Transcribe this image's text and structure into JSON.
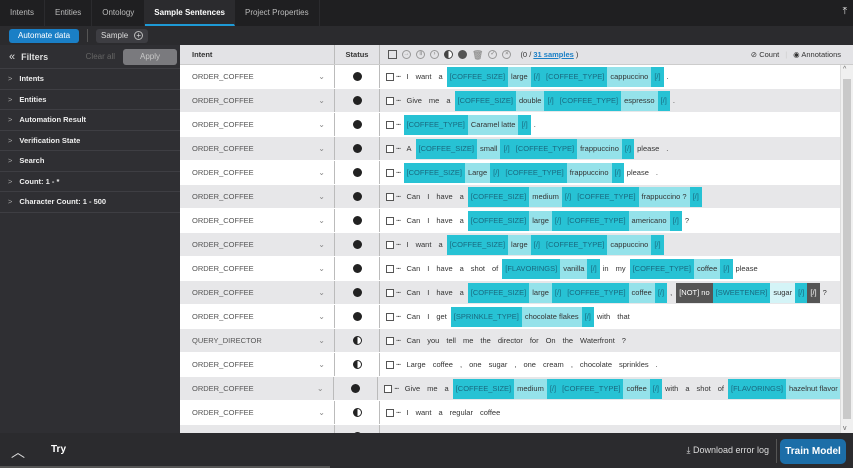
{
  "tabs": [
    {
      "label": "Intents"
    },
    {
      "label": "Entities"
    },
    {
      "label": "Ontology"
    },
    {
      "label": "Sample Sentences",
      "active": true
    },
    {
      "label": "Project Properties"
    }
  ],
  "toolbar": {
    "automate_label": "Automate data",
    "sample_label": "Sample"
  },
  "filters": {
    "title": "Filters",
    "clear_label": "Clear all",
    "apply_label": "Apply",
    "items": [
      {
        "label": "Intents"
      },
      {
        "label": "Entities"
      },
      {
        "label": "Automation Result"
      },
      {
        "label": "Verification State"
      },
      {
        "label": "Search"
      },
      {
        "label": "Count:  1 - *"
      },
      {
        "label": "Character Count:  1 - 500"
      }
    ]
  },
  "table": {
    "col_intent": "Intent",
    "col_status": "Status",
    "selected_prefix": "(0 / ",
    "samples_link": "31 samples",
    "selected_suffix": " )",
    "count_label": "Count",
    "annotations_label": "Annotations",
    "rows": [
      {
        "intent": "ORDER_COFFEE",
        "status": "full",
        "tokens": [
          [
            "w",
            "I"
          ],
          [
            "w",
            "want"
          ],
          [
            "w",
            "a"
          ],
          [
            "tag",
            "[COFFEE_SIZE]"
          ],
          [
            "val",
            "large"
          ],
          [
            "end",
            "[/]"
          ],
          [
            "tag",
            "[COFFEE_TYPE]"
          ],
          [
            "val",
            "cappuccino"
          ],
          [
            "end",
            "[/]"
          ],
          [
            "w",
            "."
          ]
        ]
      },
      {
        "intent": "ORDER_COFFEE",
        "status": "full",
        "tokens": [
          [
            "w",
            "Give"
          ],
          [
            "w",
            "me"
          ],
          [
            "w",
            "a"
          ],
          [
            "tag",
            "[COFFEE_SIZE]"
          ],
          [
            "val",
            "double"
          ],
          [
            "end",
            "[/]"
          ],
          [
            "tag",
            "[COFFEE_TYPE]"
          ],
          [
            "val",
            "espresso"
          ],
          [
            "end",
            "[/]"
          ],
          [
            "w",
            "."
          ]
        ]
      },
      {
        "intent": "ORDER_COFFEE",
        "status": "full",
        "tokens": [
          [
            "tag",
            "[COFFEE_TYPE]"
          ],
          [
            "val",
            "Caramel  latte"
          ],
          [
            "end",
            "[/]"
          ],
          [
            "w",
            "."
          ]
        ]
      },
      {
        "intent": "ORDER_COFFEE",
        "status": "full",
        "tokens": [
          [
            "w",
            "A"
          ],
          [
            "tag",
            "[COFFEE_SIZE]"
          ],
          [
            "val",
            "small"
          ],
          [
            "end",
            "[/]"
          ],
          [
            "tag",
            "[COFFEE_TYPE]"
          ],
          [
            "val",
            "frappuccino"
          ],
          [
            "end",
            "[/]"
          ],
          [
            "w",
            "please"
          ],
          [
            "w",
            "."
          ]
        ]
      },
      {
        "intent": "ORDER_COFFEE",
        "status": "full",
        "tokens": [
          [
            "tag",
            "[COFFEE_SIZE]"
          ],
          [
            "val",
            "Large"
          ],
          [
            "end",
            "[/]"
          ],
          [
            "tag",
            "[COFFEE_TYPE]"
          ],
          [
            "val",
            "frappuccino"
          ],
          [
            "end",
            "[/]"
          ],
          [
            "w",
            "please"
          ],
          [
            "w",
            "."
          ]
        ]
      },
      {
        "intent": "ORDER_COFFEE",
        "status": "full",
        "tokens": [
          [
            "w",
            "Can"
          ],
          [
            "w",
            "I"
          ],
          [
            "w",
            "have"
          ],
          [
            "w",
            "a"
          ],
          [
            "tag",
            "[COFFEE_SIZE]"
          ],
          [
            "val",
            "medium"
          ],
          [
            "end",
            "[/]"
          ],
          [
            "tag",
            "[COFFEE_TYPE]"
          ],
          [
            "val",
            "frappuccino  ?"
          ],
          [
            "end",
            "[/]"
          ]
        ]
      },
      {
        "intent": "ORDER_COFFEE",
        "status": "full",
        "tokens": [
          [
            "w",
            "Can"
          ],
          [
            "w",
            "I"
          ],
          [
            "w",
            "have"
          ],
          [
            "w",
            "a"
          ],
          [
            "tag",
            "[COFFEE_SIZE]"
          ],
          [
            "val",
            "large"
          ],
          [
            "end",
            "[/]"
          ],
          [
            "tag",
            "[COFFEE_TYPE]"
          ],
          [
            "val",
            "americano"
          ],
          [
            "end",
            "[/]"
          ],
          [
            "w",
            "?"
          ]
        ]
      },
      {
        "intent": "ORDER_COFFEE",
        "status": "full",
        "tokens": [
          [
            "w",
            "I"
          ],
          [
            "w",
            "want"
          ],
          [
            "w",
            "a"
          ],
          [
            "tag",
            "[COFFEE_SIZE]"
          ],
          [
            "val",
            "large"
          ],
          [
            "end",
            "[/]"
          ],
          [
            "tag",
            "[COFFEE_TYPE]"
          ],
          [
            "val",
            "cappuccino"
          ],
          [
            "end",
            "[/]"
          ]
        ]
      },
      {
        "intent": "ORDER_COFFEE",
        "status": "full",
        "tokens": [
          [
            "w",
            "Can"
          ],
          [
            "w",
            "I"
          ],
          [
            "w",
            "have"
          ],
          [
            "w",
            "a"
          ],
          [
            "w",
            "shot"
          ],
          [
            "w",
            "of"
          ],
          [
            "tag",
            "[FLAVORINGS]"
          ],
          [
            "val",
            "vanilla"
          ],
          [
            "end",
            "[/]"
          ],
          [
            "w",
            "in"
          ],
          [
            "w",
            "my"
          ],
          [
            "tag",
            "[COFFEE_TYPE]"
          ],
          [
            "val",
            "coffee"
          ],
          [
            "end",
            "[/]"
          ],
          [
            "w",
            "please"
          ]
        ]
      },
      {
        "intent": "ORDER_COFFEE",
        "status": "full",
        "tokens": [
          [
            "w",
            "Can"
          ],
          [
            "w",
            "I"
          ],
          [
            "w",
            "have"
          ],
          [
            "w",
            "a"
          ],
          [
            "tag",
            "[COFFEE_SIZE]"
          ],
          [
            "val",
            "large"
          ],
          [
            "end",
            "[/]"
          ],
          [
            "tag",
            "[COFFEE_TYPE]"
          ],
          [
            "val",
            "coffee"
          ],
          [
            "end",
            "[/]"
          ],
          [
            "w",
            ","
          ],
          [
            "not",
            "[NOT]  no"
          ],
          [
            "tag",
            "[SWEETENER]"
          ],
          [
            "val2",
            "sugar"
          ],
          [
            "end",
            "[/]"
          ],
          [
            "not",
            "[/]"
          ],
          [
            "w",
            "?"
          ]
        ]
      },
      {
        "intent": "ORDER_COFFEE",
        "status": "full",
        "tokens": [
          [
            "w",
            "Can"
          ],
          [
            "w",
            "I"
          ],
          [
            "w",
            "get"
          ],
          [
            "tag",
            "[SPRINKLE_TYPE]"
          ],
          [
            "val",
            "chocolate  flakes"
          ],
          [
            "end",
            "[/]"
          ],
          [
            "w",
            "with"
          ],
          [
            "w",
            "that"
          ]
        ]
      },
      {
        "intent": "QUERY_DIRECTOR",
        "status": "half",
        "tokens": [
          [
            "w",
            "Can"
          ],
          [
            "w",
            "you"
          ],
          [
            "w",
            "tell"
          ],
          [
            "w",
            "me"
          ],
          [
            "w",
            "the"
          ],
          [
            "w",
            "director"
          ],
          [
            "w",
            "for"
          ],
          [
            "w",
            "On"
          ],
          [
            "w",
            "the"
          ],
          [
            "w",
            "Waterfront"
          ],
          [
            "w",
            "?"
          ]
        ]
      },
      {
        "intent": "ORDER_COFFEE",
        "status": "half",
        "tokens": [
          [
            "w",
            "Large"
          ],
          [
            "w",
            "coffee"
          ],
          [
            "w",
            ","
          ],
          [
            "w",
            "one"
          ],
          [
            "w",
            "sugar"
          ],
          [
            "w",
            ","
          ],
          [
            "w",
            "one"
          ],
          [
            "w",
            "cream"
          ],
          [
            "w",
            ","
          ],
          [
            "w",
            "chocolate"
          ],
          [
            "w",
            "sprinkles"
          ],
          [
            "w",
            "."
          ]
        ]
      },
      {
        "intent": "ORDER_COFFEE",
        "status": "full",
        "tokens": [
          [
            "w",
            "Give"
          ],
          [
            "w",
            "me"
          ],
          [
            "w",
            "a"
          ],
          [
            "tag",
            "[COFFEE_SIZE]"
          ],
          [
            "val",
            "medium"
          ],
          [
            "end",
            "[/]"
          ],
          [
            "tag",
            "[COFFEE_TYPE]"
          ],
          [
            "val",
            "coffee"
          ],
          [
            "end",
            "[/]"
          ],
          [
            "w",
            "with"
          ],
          [
            "w",
            "a"
          ],
          [
            "w",
            "shot"
          ],
          [
            "w",
            "of"
          ],
          [
            "tag",
            "[FLAVORINGS]"
          ],
          [
            "val",
            "hazelnut  flavor"
          ],
          [
            "end",
            "[/]"
          ]
        ]
      },
      {
        "intent": "ORDER_COFFEE",
        "status": "half",
        "tokens": [
          [
            "w",
            "I"
          ],
          [
            "w",
            "want"
          ],
          [
            "w",
            "a"
          ],
          [
            "w",
            "regular"
          ],
          [
            "w",
            "coffee"
          ]
        ]
      }
    ]
  },
  "footer": {
    "try_label": "Try",
    "download_label": "Download error log",
    "train_label": "Train Model"
  },
  "colors": {
    "accent": "#1a7fc6",
    "entity_tag": "#27c2d4",
    "entity_value": "#95e2ea",
    "negation": "#555555"
  }
}
